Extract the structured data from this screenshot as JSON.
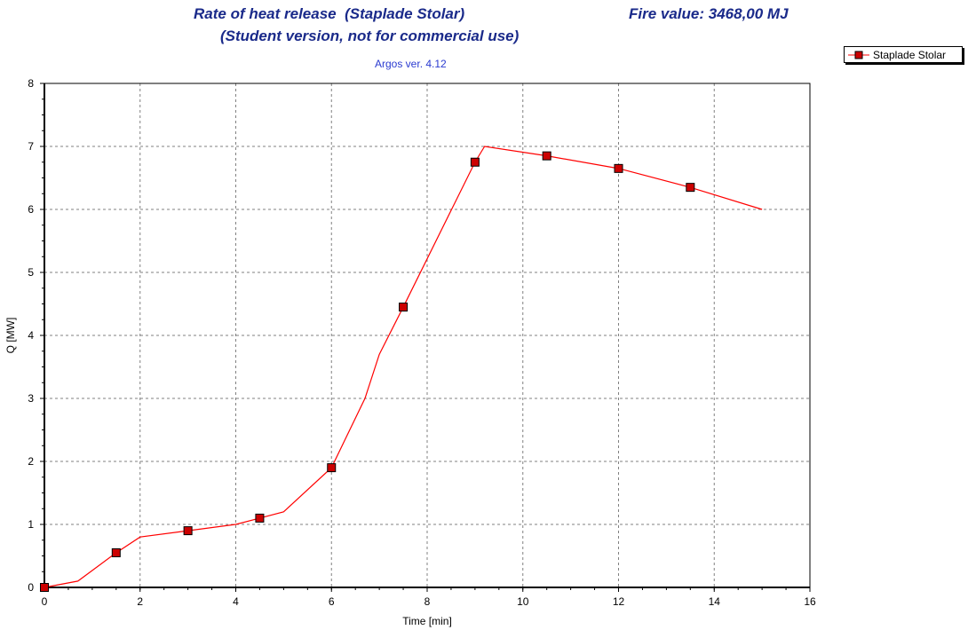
{
  "header": {
    "title_line1": "Rate of heat release  (Staplade Stolar)",
    "title_line2": "(Student version, not for commercial use)",
    "fire_value": "Fire value: 3468,00 MJ",
    "version": "Argos ver. 4.12"
  },
  "colors": {
    "series": "#ff0000",
    "marker": "#cc0000",
    "title": "#1a2a8a",
    "grid": "#808080"
  },
  "chart_data": {
    "type": "line",
    "xlabel": "Time [min]",
    "ylabel": "Q [MW]",
    "xlim": [
      0,
      16
    ],
    "ylim": [
      0,
      8
    ],
    "xticks": [
      0,
      2,
      4,
      6,
      8,
      10,
      12,
      14,
      16
    ],
    "yticks": [
      0,
      1,
      2,
      3,
      4,
      5,
      6,
      7,
      8
    ],
    "grid": true,
    "legend_position": "top-right",
    "series": [
      {
        "name": "Staplade Stolar",
        "x": [
          0,
          0.7,
          1.5,
          2,
          3,
          4,
          4.5,
          5,
          6,
          6.7,
          7,
          7.5,
          9,
          9.2,
          10.5,
          12,
          13.5,
          15
        ],
        "y": [
          0,
          0.1,
          0.55,
          0.8,
          0.9,
          1.0,
          1.1,
          1.2,
          1.9,
          3.0,
          3.7,
          4.45,
          6.75,
          7.0,
          6.85,
          6.65,
          6.35,
          6.0
        ],
        "marker_x": [
          0,
          1.5,
          3,
          4.5,
          6,
          7.5,
          9,
          10.5,
          12,
          13.5
        ],
        "marker_y": [
          0,
          0.55,
          0.9,
          1.1,
          1.9,
          4.45,
          6.75,
          6.85,
          6.65,
          6.35
        ]
      }
    ]
  }
}
